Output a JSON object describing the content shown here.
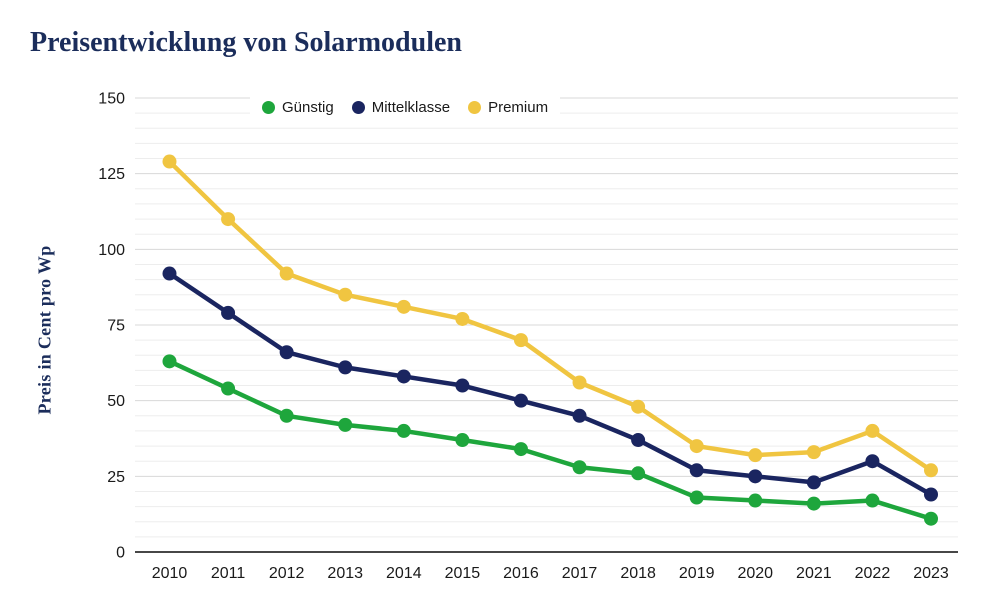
{
  "title": "Preisentwicklung von Solarmodulen",
  "y_axis_title": "Preis in Cent pro Wp",
  "colors": {
    "title_text": "#1b2d5b",
    "tick_label": "#1a1a1a",
    "grid_major": "#d8d8d8",
    "grid_minor": "#ededed",
    "zero_axis": "#474747",
    "background": "#ffffff"
  },
  "chart_data": {
    "type": "line",
    "title": "Preisentwicklung von Solarmodulen",
    "ylabel": "Preis in Cent pro Wp",
    "xlabel": "",
    "units": "Cent pro Wp",
    "x": [
      2010,
      2011,
      2012,
      2013,
      2014,
      2015,
      2016,
      2017,
      2018,
      2019,
      2020,
      2021,
      2022,
      2023
    ],
    "series": [
      {
        "name": "Günstig",
        "color": "#1ea63c",
        "values": [
          63,
          54,
          45,
          42,
          40,
          37,
          34,
          28,
          26,
          18,
          17,
          16,
          17,
          11
        ]
      },
      {
        "name": "Mittelklasse",
        "color": "#1a2560",
        "values": [
          92,
          79,
          66,
          61,
          58,
          55,
          50,
          45,
          37,
          27,
          25,
          23,
          30,
          19
        ]
      },
      {
        "name": "Premium",
        "color": "#f0c541",
        "values": [
          129,
          110,
          92,
          85,
          81,
          77,
          70,
          56,
          48,
          35,
          32,
          33,
          40,
          27
        ]
      }
    ],
    "ylim": [
      0,
      150
    ],
    "yticks": [
      0,
      25,
      50,
      75,
      100,
      125,
      150
    ],
    "minor_tick_step": 5,
    "grid": true,
    "legend_position": "top-center",
    "markers": true
  }
}
